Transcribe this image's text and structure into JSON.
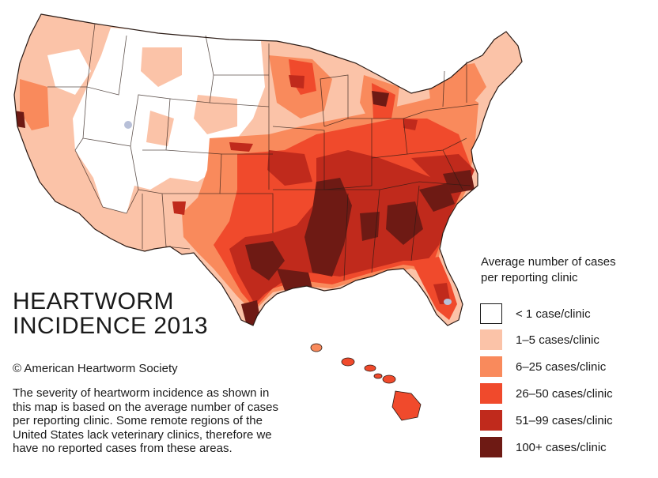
{
  "title": {
    "line1": "HEARTWORM",
    "line2": "INCIDENCE 2013"
  },
  "copyright": "© American Heartworm Society",
  "description": [
    "The severity of heartworm incidence as shown in",
    "this map is based on the average number of cases",
    "per reporting clinic. Some remote regions of the",
    "United States lack veterinary clinics, therefore we",
    "have no reported cases from these areas."
  ],
  "legend": {
    "title_line1": "Average number of cases",
    "title_line2": "per reporting clinic",
    "items": [
      {
        "label": "< 1 case/clinic",
        "color": "#ffffff"
      },
      {
        "label": "1–5 cases/clinic",
        "color": "#fbc3a8"
      },
      {
        "label": "6–25 cases/clinic",
        "color": "#f98a5c"
      },
      {
        "label": "26–50 cases/clinic",
        "color": "#f04a2c"
      },
      {
        "label": "51–99 cases/clinic",
        "color": "#c02a1c"
      },
      {
        "label": "100+ cases/clinic",
        "color": "#6e1a14"
      }
    ]
  },
  "colors": {
    "no_data": "#b8c0d8",
    "border": "#2a1a14"
  }
}
